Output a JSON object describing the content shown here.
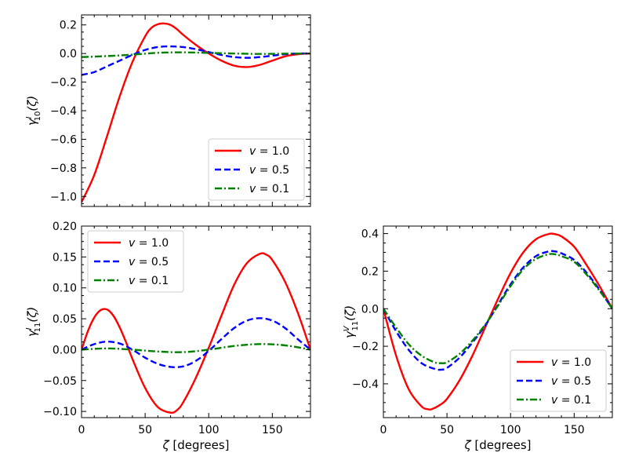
{
  "chart_data": [
    {
      "type": "line",
      "id": "top-left",
      "ylabel": "γ^I_10(ζ)",
      "ylabel_parts": {
        "base": "γ",
        "sup": "I",
        "sub": "10",
        "tail": "(ζ)"
      },
      "xlabel": "",
      "xlim": [
        0,
        180
      ],
      "ylim": [
        -1.07,
        0.27
      ],
      "xticks": [
        0,
        50,
        100,
        150
      ],
      "xtick_labels_visible": false,
      "yticks": [
        -1.0,
        -0.8,
        -0.6,
        -0.4,
        -0.2,
        0.0,
        0.2
      ],
      "ytick_labels": [
        "−1.0",
        "−0.8",
        "−0.6",
        "−0.4",
        "−0.2",
        "0.0",
        "0.2"
      ],
      "legend_position": "lower-right",
      "series": [
        {
          "name": "v = 1.0",
          "color": "#ff0000",
          "dash": "solid",
          "x": [
            0,
            10,
            20,
            30,
            40,
            50,
            55,
            60,
            65,
            70,
            75,
            80,
            90,
            100,
            110,
            120,
            130,
            140,
            150,
            160,
            170,
            180
          ],
          "y": [
            -1.04,
            -0.85,
            -0.58,
            -0.3,
            -0.06,
            0.12,
            0.18,
            0.205,
            0.21,
            0.2,
            0.17,
            0.13,
            0.06,
            0.0,
            -0.05,
            -0.085,
            -0.095,
            -0.08,
            -0.05,
            -0.02,
            -0.005,
            0.0
          ]
        },
        {
          "name": "v = 0.5",
          "color": "#0000ff",
          "dash": "dashed",
          "x": [
            0,
            10,
            20,
            30,
            40,
            50,
            60,
            70,
            80,
            90,
            100,
            110,
            120,
            130,
            140,
            150,
            160,
            170,
            180
          ],
          "y": [
            -0.15,
            -0.13,
            -0.09,
            -0.05,
            -0.01,
            0.025,
            0.045,
            0.05,
            0.045,
            0.03,
            0.01,
            -0.01,
            -0.025,
            -0.03,
            -0.025,
            -0.015,
            -0.005,
            0.0,
            0.0
          ]
        },
        {
          "name": "v = 0.1",
          "color": "#008000",
          "dash": "dashdot",
          "x": [
            0,
            20,
            40,
            60,
            80,
            100,
            120,
            140,
            160,
            180
          ],
          "y": [
            -0.025,
            -0.018,
            -0.008,
            0.005,
            0.008,
            0.004,
            0.0,
            -0.003,
            -0.001,
            0.0
          ]
        }
      ]
    },
    {
      "type": "line",
      "id": "bottom-left",
      "ylabel": "γ^I_11(ζ)",
      "ylabel_parts": {
        "base": "γ",
        "sup": "I",
        "sub": "11",
        "tail": "(ζ)"
      },
      "xlabel": "ζ [degrees]",
      "xlim": [
        0,
        180
      ],
      "ylim": [
        -0.11,
        0.2
      ],
      "xticks": [
        0,
        50,
        100,
        150
      ],
      "xtick_labels_visible": true,
      "yticks": [
        -0.1,
        -0.05,
        0.0,
        0.05,
        0.1,
        0.15,
        0.2
      ],
      "ytick_labels": [
        "−0.10",
        "−0.05",
        "0.00",
        "0.05",
        "0.10",
        "0.15",
        "0.20"
      ],
      "legend_position": "upper-left",
      "series": [
        {
          "name": "v = 1.0",
          "color": "#ff0000",
          "dash": "solid",
          "x": [
            0,
            5,
            10,
            15,
            20,
            25,
            30,
            35,
            40,
            50,
            60,
            70,
            75,
            80,
            90,
            100,
            110,
            120,
            130,
            140,
            145,
            150,
            160,
            170,
            180
          ],
          "y": [
            0.0,
            0.03,
            0.052,
            0.064,
            0.065,
            0.055,
            0.036,
            0.012,
            -0.015,
            -0.062,
            -0.093,
            -0.102,
            -0.098,
            -0.085,
            -0.045,
            0.003,
            0.055,
            0.105,
            0.14,
            0.155,
            0.154,
            0.145,
            0.11,
            0.06,
            0.0
          ]
        },
        {
          "name": "v = 0.5",
          "color": "#0000ff",
          "dash": "dashed",
          "x": [
            0,
            10,
            20,
            30,
            40,
            50,
            60,
            70,
            80,
            90,
            100,
            110,
            120,
            130,
            140,
            150,
            160,
            170,
            180
          ],
          "y": [
            0.0,
            0.009,
            0.013,
            0.01,
            0.0,
            -0.013,
            -0.023,
            -0.028,
            -0.027,
            -0.018,
            -0.002,
            0.017,
            0.035,
            0.047,
            0.051,
            0.047,
            0.035,
            0.017,
            0.0
          ]
        },
        {
          "name": "v = 0.1",
          "color": "#008000",
          "dash": "dashdot",
          "x": [
            0,
            20,
            40,
            60,
            80,
            100,
            120,
            140,
            160,
            180
          ],
          "y": [
            0.0,
            0.002,
            0.0,
            -0.003,
            -0.004,
            0.0,
            0.006,
            0.009,
            0.007,
            0.0
          ]
        }
      ]
    },
    {
      "type": "line",
      "id": "bottom-right",
      "ylabel": "γ^V_11(ζ)",
      "ylabel_parts": {
        "base": "γ",
        "sup": "V",
        "sub": "11",
        "tail": "(ζ)"
      },
      "xlabel": "ζ [degrees]",
      "xlim": [
        0,
        180
      ],
      "ylim": [
        -0.58,
        0.44
      ],
      "xticks": [
        0,
        50,
        100,
        150
      ],
      "xtick_labels_visible": true,
      "yticks": [
        -0.4,
        -0.2,
        0.0,
        0.2,
        0.4
      ],
      "ytick_labels": [
        "−0.4",
        "−0.2",
        "0.0",
        "0.2",
        "0.4"
      ],
      "legend_position": "lower-right",
      "series": [
        {
          "name": "v = 1.0",
          "color": "#ff0000",
          "dash": "solid",
          "x": [
            0,
            10,
            20,
            30,
            35,
            38,
            45,
            50,
            60,
            70,
            80,
            90,
            100,
            110,
            120,
            130,
            135,
            140,
            150,
            160,
            170,
            180
          ],
          "y": [
            0.0,
            -0.25,
            -0.43,
            -0.52,
            -0.535,
            -0.535,
            -0.51,
            -0.48,
            -0.38,
            -0.25,
            -0.1,
            0.05,
            0.19,
            0.3,
            0.37,
            0.398,
            0.397,
            0.385,
            0.33,
            0.23,
            0.12,
            0.0
          ]
        },
        {
          "name": "v = 0.5",
          "color": "#0000ff",
          "dash": "dashed",
          "x": [
            0,
            10,
            20,
            30,
            40,
            45,
            50,
            60,
            70,
            80,
            90,
            100,
            110,
            120,
            130,
            135,
            140,
            150,
            160,
            170,
            180
          ],
          "y": [
            0.0,
            -0.12,
            -0.22,
            -0.29,
            -0.32,
            -0.325,
            -0.315,
            -0.26,
            -0.18,
            -0.09,
            0.02,
            0.13,
            0.22,
            0.28,
            0.305,
            0.305,
            0.295,
            0.26,
            0.19,
            0.1,
            0.0
          ]
        },
        {
          "name": "v = 0.1",
          "color": "#008000",
          "dash": "dashdot",
          "x": [
            0,
            10,
            20,
            30,
            40,
            45,
            50,
            60,
            70,
            80,
            90,
            100,
            110,
            120,
            130,
            135,
            140,
            150,
            160,
            170,
            180
          ],
          "y": [
            0.0,
            -0.1,
            -0.19,
            -0.25,
            -0.285,
            -0.29,
            -0.285,
            -0.24,
            -0.17,
            -0.085,
            0.015,
            0.12,
            0.21,
            0.265,
            0.29,
            0.29,
            0.28,
            0.25,
            0.18,
            0.095,
            0.0
          ]
        }
      ]
    }
  ]
}
